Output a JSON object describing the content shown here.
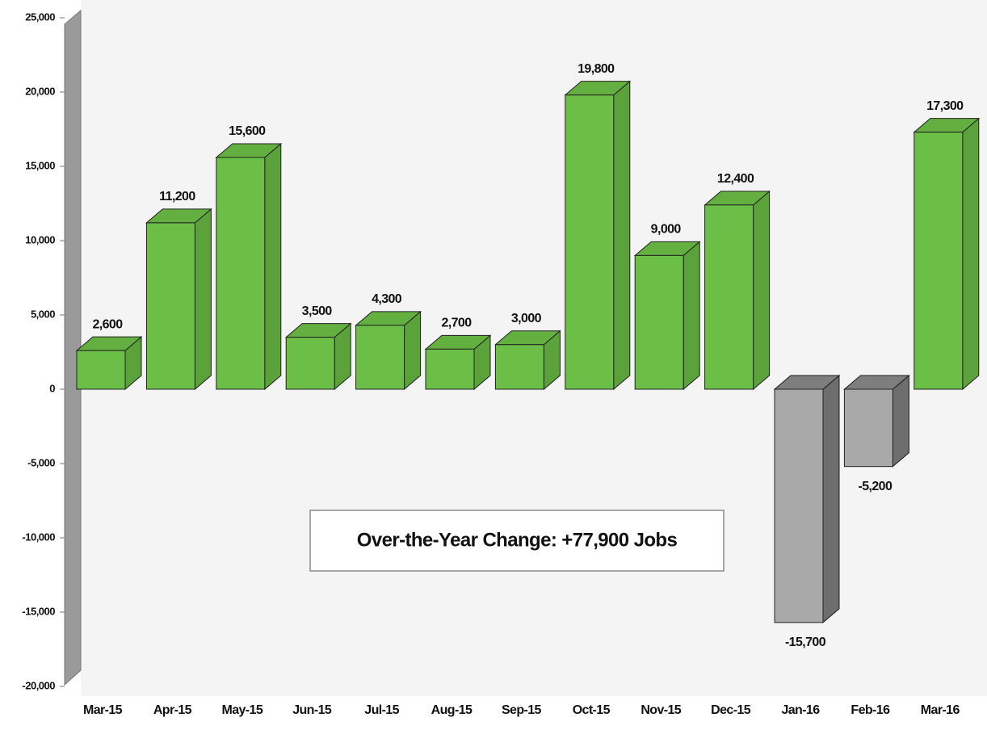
{
  "chart_data": {
    "type": "bar3d",
    "categories": [
      "Mar-15",
      "Apr-15",
      "May-15",
      "Jun-15",
      "Jul-15",
      "Aug-15",
      "Sep-15",
      "Oct-15",
      "Nov-15",
      "Dec-15",
      "Jan-16",
      "Feb-16",
      "Mar-16"
    ],
    "values": [
      2600,
      11200,
      15600,
      3500,
      4300,
      2700,
      3000,
      19800,
      9000,
      12400,
      -15700,
      -5200,
      17300
    ],
    "value_labels": [
      "2,600",
      "11,200",
      "15,600",
      "3,500",
      "4,300",
      "2,700",
      "3,000",
      "19,800",
      "9,000",
      "12,400",
      "-15,700",
      "-5,200",
      "17,300"
    ],
    "color": "#6cbf46",
    "negative_color": "#a9a9a9",
    "ylim": [
      -20000,
      25000
    ],
    "yticks": [
      {
        "value": -20000,
        "label": "-20,000"
      },
      {
        "value": -15000,
        "label": "-15,000"
      },
      {
        "value": -10000,
        "label": "-10,000"
      },
      {
        "value": -5000,
        "label": "-5,000"
      },
      0,
      {
        "value": 5000,
        "label": "5,000"
      },
      {
        "value": 10000,
        "label": "10,000"
      },
      {
        "value": 15000,
        "label": "15,000"
      },
      {
        "value": 20000,
        "label": "20,000"
      },
      {
        "value": 25000,
        "label": "25,000"
      }
    ],
    "annotation": "Over-the-Year Change: +77,900 Jobs"
  }
}
